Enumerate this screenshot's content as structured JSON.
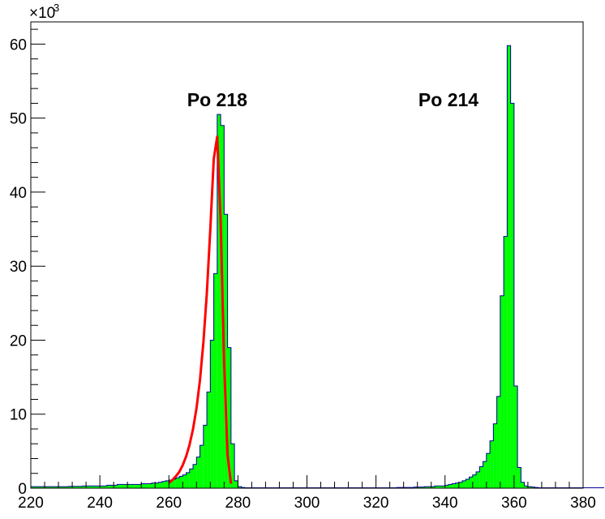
{
  "chart_data": {
    "type": "bar",
    "title": "",
    "xlabel": "",
    "ylabel": "",
    "xlim": [
      220,
      380
    ],
    "ylim": [
      0,
      63
    ],
    "y_multiplier_label": "×10",
    "y_multiplier_exp": "3",
    "x_ticks": [
      220,
      240,
      260,
      280,
      300,
      320,
      340,
      360,
      380
    ],
    "y_ticks": [
      0,
      10,
      20,
      30,
      40,
      50,
      60
    ],
    "x_tick_labels": [
      "220",
      "240",
      "260",
      "280",
      "300",
      "320",
      "340",
      "360",
      "380"
    ],
    "y_tick_labels": [
      "0",
      "10",
      "20",
      "30",
      "40",
      "50",
      "60"
    ],
    "bin_width": 1,
    "bins_start": 220,
    "values": [
      0.2,
      0.2,
      0.2,
      0.2,
      0.2,
      0.2,
      0.2,
      0.2,
      0.2,
      0.2,
      0.2,
      0.25,
      0.25,
      0.25,
      0.25,
      0.3,
      0.3,
      0.3,
      0.3,
      0.3,
      0.3,
      0.3,
      0.4,
      0.4,
      0.4,
      0.5,
      0.5,
      0.5,
      0.5,
      0.5,
      0.5,
      0.5,
      0.6,
      0.6,
      0.6,
      0.7,
      0.7,
      0.8,
      0.9,
      1.0,
      1.1,
      1.2,
      1.4,
      1.6,
      1.8,
      2.1,
      2.6,
      3.2,
      4.2,
      5.8,
      8.5,
      13,
      20,
      29,
      50.5,
      49,
      37,
      19,
      6,
      1,
      0.2,
      0.1,
      0.05,
      0.05,
      0.05,
      0.05,
      0.05,
      0.05,
      0.05,
      0.05,
      0.05,
      0.05,
      0.05,
      0.05,
      0.05,
      0.05,
      0.05,
      0.05,
      0.05,
      0.05,
      0.05,
      0.05,
      0.05,
      0.05,
      0.05,
      0.05,
      0.05,
      0.05,
      0.05,
      0.05,
      0.05,
      0.05,
      0.05,
      0.05,
      0.05,
      0.05,
      0.05,
      0.05,
      0.05,
      0.05,
      0.05,
      0.05,
      0.05,
      0.05,
      0.05,
      0.05,
      0.1,
      0.1,
      0.1,
      0.1,
      0.1,
      0.15,
      0.15,
      0.15,
      0.2,
      0.2,
      0.2,
      0.3,
      0.3,
      0.3,
      0.4,
      0.5,
      0.6,
      0.7,
      0.8,
      1.0,
      1.2,
      1.5,
      1.8,
      2.2,
      2.9,
      3.6,
      4.7,
      6.4,
      8.7,
      12.4,
      26,
      34,
      59.8,
      52,
      13.8,
      2.8,
      0.8,
      0.3,
      0.2,
      0.15,
      0.1,
      0.05,
      0.05,
      0.05,
      0.05,
      0.05,
      0.05,
      0.05,
      0.05,
      0.05,
      0.05,
      0.05,
      0.05,
      0.05,
      0.05,
      0.05,
      0.05,
      0.05,
      0.05,
      0.05
    ],
    "fill_color": "#00ff00",
    "outline_color": "#000099",
    "fit": {
      "color": "#ff0000",
      "x": [
        260,
        261,
        262,
        263,
        264,
        265,
        266,
        267,
        268,
        269,
        270,
        271,
        272,
        273,
        274,
        275,
        276,
        277,
        278
      ],
      "y": [
        0.7,
        1.1,
        1.6,
        2.2,
        3.1,
        4.3,
        5.9,
        8.0,
        10.8,
        14.6,
        19.7,
        26.4,
        35.0,
        44.5,
        47.5,
        36.0,
        17.0,
        4.5,
        0.6
      ]
    },
    "annotations": [
      {
        "text": "Po 218",
        "x": 274,
        "y": 52.5
      },
      {
        "text": "Po 214",
        "x": 341,
        "y": 52.5
      }
    ],
    "grid": false,
    "legend": "none"
  }
}
